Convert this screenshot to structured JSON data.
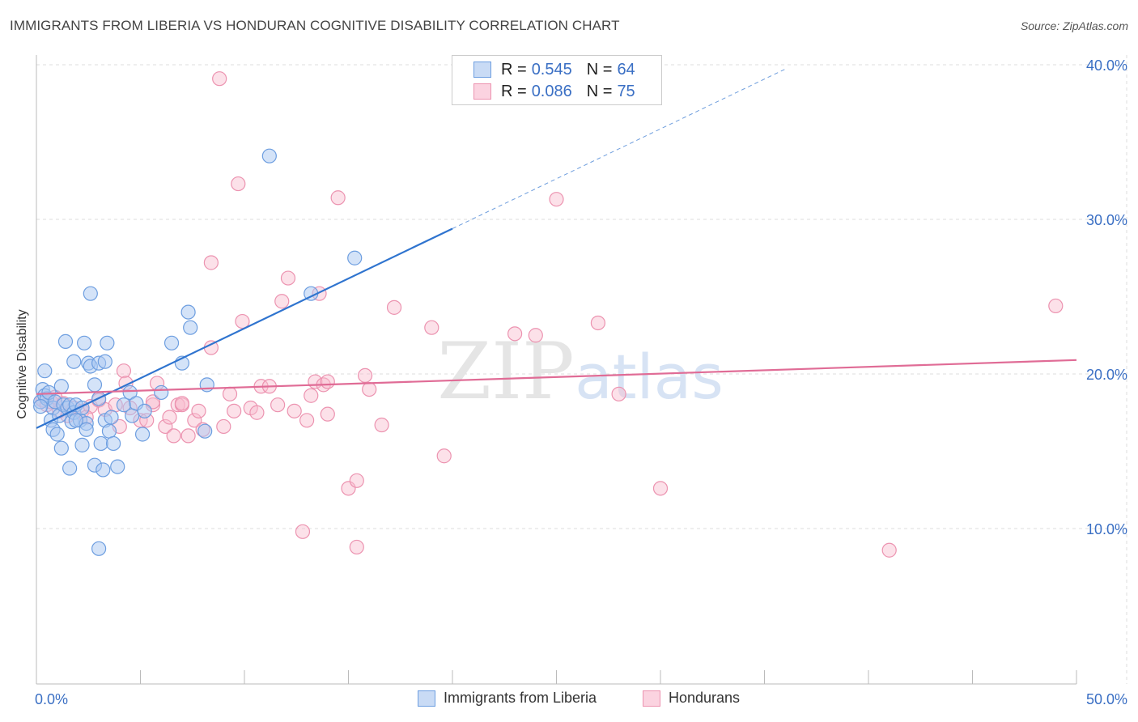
{
  "header": {
    "title": "IMMIGRANTS FROM LIBERIA VS HONDURAN COGNITIVE DISABILITY CORRELATION CHART",
    "source": "Source: ZipAtlas.com"
  },
  "watermark": {
    "part1": "ZIP",
    "part2": "atlas"
  },
  "colors": {
    "blue_fill": "#a9c8f2",
    "blue_stroke": "#6d9ee0",
    "blue_line": "#2f74cf",
    "pink_fill": "#f8bccf",
    "pink_stroke": "#ec93b0",
    "pink_line": "#e06c96",
    "axis_text": "#3a6fc4",
    "grid": "#dddddd"
  },
  "stats_box": {
    "rows": [
      {
        "series": "blue",
        "r_label": "R =",
        "r_value": "0.545",
        "n_label": "N =",
        "n_value": "64"
      },
      {
        "series": "pink",
        "r_label": "R =",
        "r_value": "0.086",
        "n_label": "N =",
        "n_value": "75"
      }
    ]
  },
  "chart_data": {
    "type": "scatter",
    "title": "IMMIGRANTS FROM LIBERIA VS HONDURAN COGNITIVE DISABILITY CORRELATION CHART",
    "xlabel": "",
    "ylabel": "Cognitive Disability",
    "xlim": [
      0,
      50
    ],
    "ylim": [
      0,
      40
    ],
    "x_tick_labels": [
      "0.0%",
      "50.0%"
    ],
    "y_ticks": [
      10,
      20,
      30,
      40
    ],
    "y_tick_labels": [
      "10.0%",
      "20.0%",
      "30.0%",
      "40.0%"
    ],
    "grid": true,
    "legend": {
      "position": "bottom-center",
      "entries": [
        "Immigrants from Liberia",
        "Hondurans"
      ]
    },
    "series": [
      {
        "name": "Immigrants from Liberia",
        "color": "#6d9ee0",
        "r": 0.545,
        "n": 64,
        "trend": {
          "x0": 0.0,
          "y0": 16.5,
          "x1": 20.0,
          "y1": 29.4,
          "dashed_to_x": 36.0
        },
        "points": [
          [
            0.2,
            18.2
          ],
          [
            0.3,
            19.0
          ],
          [
            0.4,
            18.6
          ],
          [
            0.5,
            18.4
          ],
          [
            0.6,
            18.8
          ],
          [
            0.8,
            17.8
          ],
          [
            0.9,
            18.2
          ],
          [
            0.4,
            20.2
          ],
          [
            0.7,
            17.0
          ],
          [
            0.8,
            16.4
          ],
          [
            1.0,
            16.1
          ],
          [
            1.1,
            17.3
          ],
          [
            1.2,
            15.2
          ],
          [
            1.3,
            18.0
          ],
          [
            1.2,
            19.2
          ],
          [
            1.4,
            22.1
          ],
          [
            1.5,
            17.8
          ],
          [
            1.6,
            18.0
          ],
          [
            1.7,
            16.9
          ],
          [
            1.8,
            17.5
          ],
          [
            1.6,
            13.9
          ],
          [
            1.8,
            20.8
          ],
          [
            1.9,
            18.0
          ],
          [
            2.1,
            17.0
          ],
          [
            2.2,
            17.8
          ],
          [
            2.2,
            15.4
          ],
          [
            2.3,
            22.0
          ],
          [
            2.4,
            16.8
          ],
          [
            2.4,
            16.4
          ],
          [
            2.5,
            20.7
          ],
          [
            2.6,
            25.2
          ],
          [
            2.6,
            20.5
          ],
          [
            2.8,
            19.3
          ],
          [
            2.8,
            14.1
          ],
          [
            3.0,
            18.4
          ],
          [
            3.1,
            15.5
          ],
          [
            3.2,
            13.8
          ],
          [
            3.0,
            20.7
          ],
          [
            3.3,
            20.8
          ],
          [
            3.4,
            22.0
          ],
          [
            3.3,
            17.0
          ],
          [
            3.5,
            16.3
          ],
          [
            3.6,
            17.2
          ],
          [
            3.7,
            15.5
          ],
          [
            3.9,
            14.0
          ],
          [
            4.2,
            18.0
          ],
          [
            4.5,
            18.8
          ],
          [
            4.6,
            17.3
          ],
          [
            4.8,
            18.1
          ],
          [
            5.1,
            16.1
          ],
          [
            5.2,
            17.6
          ],
          [
            6.0,
            18.8
          ],
          [
            6.5,
            22.0
          ],
          [
            7.0,
            20.7
          ],
          [
            7.3,
            24.0
          ],
          [
            7.4,
            23.0
          ],
          [
            8.1,
            16.3
          ],
          [
            8.2,
            19.3
          ],
          [
            11.2,
            34.1
          ],
          [
            13.2,
            25.2
          ],
          [
            15.3,
            27.5
          ],
          [
            3.0,
            8.7
          ],
          [
            0.2,
            17.9
          ],
          [
            1.9,
            17.0
          ]
        ]
      },
      {
        "name": "Hondurans",
        "color": "#ec93b0",
        "r": 0.086,
        "n": 75,
        "trend": {
          "x0": 0.0,
          "y0": 18.7,
          "x1": 50.0,
          "y1": 20.9
        },
        "points": [
          [
            0.3,
            18.3
          ],
          [
            0.5,
            18.0
          ],
          [
            0.7,
            18.2
          ],
          [
            0.9,
            18.5
          ],
          [
            1.1,
            17.6
          ],
          [
            1.3,
            18.1
          ],
          [
            1.5,
            17.3
          ],
          [
            1.8,
            17.8
          ],
          [
            2.2,
            17.6
          ],
          [
            2.6,
            17.9
          ],
          [
            3.0,
            18.3
          ],
          [
            3.3,
            17.7
          ],
          [
            3.8,
            18.0
          ],
          [
            4.0,
            16.6
          ],
          [
            4.2,
            20.2
          ],
          [
            4.3,
            19.4
          ],
          [
            4.5,
            17.8
          ],
          [
            5.0,
            17.0
          ],
          [
            5.3,
            17.0
          ],
          [
            5.6,
            18.0
          ],
          [
            5.8,
            19.4
          ],
          [
            6.2,
            16.6
          ],
          [
            6.4,
            17.2
          ],
          [
            6.6,
            16.0
          ],
          [
            6.8,
            18.0
          ],
          [
            7.0,
            18.0
          ],
          [
            7.3,
            16.0
          ],
          [
            7.6,
            17.0
          ],
          [
            7.8,
            17.6
          ],
          [
            8.0,
            16.4
          ],
          [
            8.4,
            21.7
          ],
          [
            8.4,
            27.2
          ],
          [
            8.8,
            39.1
          ],
          [
            9.0,
            16.6
          ],
          [
            9.3,
            18.7
          ],
          [
            9.5,
            17.6
          ],
          [
            9.7,
            32.3
          ],
          [
            9.9,
            23.4
          ],
          [
            10.3,
            17.8
          ],
          [
            10.6,
            17.5
          ],
          [
            10.8,
            19.2
          ],
          [
            11.2,
            19.2
          ],
          [
            11.6,
            18.0
          ],
          [
            11.8,
            24.7
          ],
          [
            12.1,
            26.2
          ],
          [
            12.4,
            17.6
          ],
          [
            12.8,
            9.8
          ],
          [
            13.0,
            17.0
          ],
          [
            13.2,
            18.6
          ],
          [
            13.4,
            19.5
          ],
          [
            13.6,
            25.2
          ],
          [
            13.8,
            19.3
          ],
          [
            14.0,
            17.4
          ],
          [
            14.0,
            19.5
          ],
          [
            14.5,
            31.4
          ],
          [
            15.0,
            12.6
          ],
          [
            15.4,
            13.1
          ],
          [
            15.4,
            8.8
          ],
          [
            15.8,
            19.9
          ],
          [
            16.0,
            19.0
          ],
          [
            16.6,
            16.7
          ],
          [
            17.2,
            24.3
          ],
          [
            19.0,
            23.0
          ],
          [
            19.6,
            14.7
          ],
          [
            23.0,
            22.6
          ],
          [
            24.0,
            22.5
          ],
          [
            25.0,
            31.3
          ],
          [
            27.0,
            23.3
          ],
          [
            28.0,
            18.7
          ],
          [
            30.0,
            12.6
          ],
          [
            41.0,
            8.6
          ],
          [
            49.0,
            24.4
          ],
          [
            2.4,
            17.2
          ],
          [
            5.6,
            18.2
          ],
          [
            7.0,
            18.1
          ]
        ]
      }
    ]
  }
}
